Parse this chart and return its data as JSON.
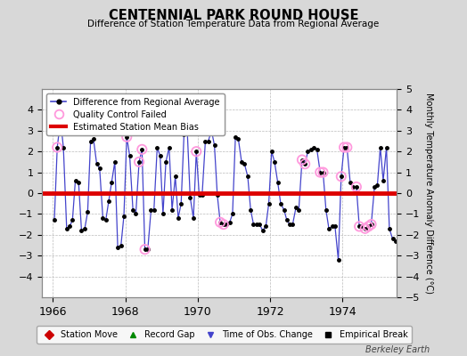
{
  "title": "CENTENNIAL PARK ROUND HOUSE",
  "subtitle": "Difference of Station Temperature Data from Regional Average",
  "ylabel_right": "Monthly Temperature Anomaly Difference (°C)",
  "bias_value": 0.0,
  "ylim": [
    -5,
    5
  ],
  "xlim": [
    1965.7,
    1975.5
  ],
  "xticks": [
    1966,
    1968,
    1970,
    1972,
    1974
  ],
  "yticks_left": [
    -4,
    -3,
    -2,
    -1,
    0,
    1,
    2,
    3,
    4
  ],
  "yticks_right": [
    -5,
    -4,
    -3,
    -2,
    -1,
    0,
    1,
    2,
    3,
    4,
    5
  ],
  "background_color": "#d8d8d8",
  "plot_bg_color": "#ffffff",
  "grid_color": "#bbbbbb",
  "line_color": "#4444cc",
  "dot_color": "#000000",
  "qc_color": "#ff99dd",
  "bias_color": "#dd0000",
  "watermark": "Berkeley Earth",
  "data_x": [
    1966.04,
    1966.12,
    1966.21,
    1966.29,
    1966.38,
    1966.46,
    1966.54,
    1966.62,
    1966.71,
    1966.79,
    1966.88,
    1966.96,
    1967.04,
    1967.12,
    1967.21,
    1967.29,
    1967.38,
    1967.46,
    1967.54,
    1967.62,
    1967.71,
    1967.79,
    1967.88,
    1967.96,
    1968.04,
    1968.12,
    1968.21,
    1968.29,
    1968.38,
    1968.46,
    1968.54,
    1968.62,
    1968.71,
    1968.79,
    1968.88,
    1968.96,
    1969.04,
    1969.12,
    1969.21,
    1969.29,
    1969.38,
    1969.46,
    1969.54,
    1969.62,
    1969.71,
    1969.79,
    1969.88,
    1969.96,
    1970.04,
    1970.12,
    1970.21,
    1970.29,
    1970.38,
    1970.46,
    1970.54,
    1970.62,
    1970.71,
    1970.79,
    1970.88,
    1970.96,
    1971.04,
    1971.12,
    1971.21,
    1971.29,
    1971.38,
    1971.46,
    1971.54,
    1971.62,
    1971.71,
    1971.79,
    1971.88,
    1971.96,
    1972.04,
    1972.12,
    1972.21,
    1972.29,
    1972.38,
    1972.46,
    1972.54,
    1972.62,
    1972.71,
    1972.79,
    1972.88,
    1972.96,
    1973.04,
    1973.12,
    1973.21,
    1973.29,
    1973.38,
    1973.46,
    1973.54,
    1973.62,
    1973.71,
    1973.79,
    1973.88,
    1973.96,
    1974.04,
    1974.12,
    1974.21,
    1974.29,
    1974.38,
    1974.46,
    1974.54,
    1974.62,
    1974.71,
    1974.79,
    1974.88,
    1974.96,
    1975.04,
    1975.12,
    1975.21,
    1975.29,
    1975.38,
    1975.46
  ],
  "data_y": [
    -1.3,
    2.2,
    3.5,
    2.2,
    -1.7,
    -1.6,
    -1.3,
    0.6,
    0.5,
    -1.8,
    -1.7,
    -0.9,
    2.5,
    2.6,
    1.4,
    1.2,
    -1.2,
    -1.3,
    -0.4,
    0.5,
    1.5,
    -2.6,
    -2.5,
    -1.1,
    2.7,
    1.8,
    -0.8,
    -1.0,
    1.5,
    2.1,
    -2.7,
    -2.7,
    -0.8,
    -0.8,
    2.2,
    1.8,
    -1.0,
    1.5,
    2.2,
    -0.8,
    0.8,
    -1.2,
    -0.5,
    2.8,
    3.0,
    -0.2,
    -1.2,
    2.0,
    -0.1,
    -0.1,
    2.5,
    2.5,
    3.0,
    2.3,
    -0.1,
    -1.4,
    -1.5,
    -1.5,
    -1.4,
    -1.0,
    2.7,
    2.6,
    1.5,
    1.4,
    0.8,
    -0.8,
    -1.5,
    -1.5,
    -1.5,
    -1.8,
    -1.6,
    -0.5,
    2.0,
    1.5,
    0.5,
    -0.5,
    -0.8,
    -1.3,
    -1.5,
    -1.5,
    -0.7,
    -0.8,
    1.6,
    1.4,
    2.0,
    2.1,
    2.2,
    2.1,
    1.0,
    1.0,
    -0.8,
    -1.7,
    -1.6,
    -1.6,
    -3.2,
    0.8,
    2.2,
    2.2,
    0.5,
    0.3,
    0.3,
    -1.6,
    -1.6,
    -1.7,
    -1.6,
    -1.5,
    0.3,
    0.4,
    2.2,
    0.6,
    2.2,
    -1.7,
    -2.2,
    -2.3
  ],
  "qc_failed_indices": [
    1,
    2,
    24,
    28,
    29,
    30,
    47,
    55,
    56,
    82,
    83,
    88,
    89,
    95,
    96,
    97,
    100,
    101,
    103,
    104,
    105
  ]
}
